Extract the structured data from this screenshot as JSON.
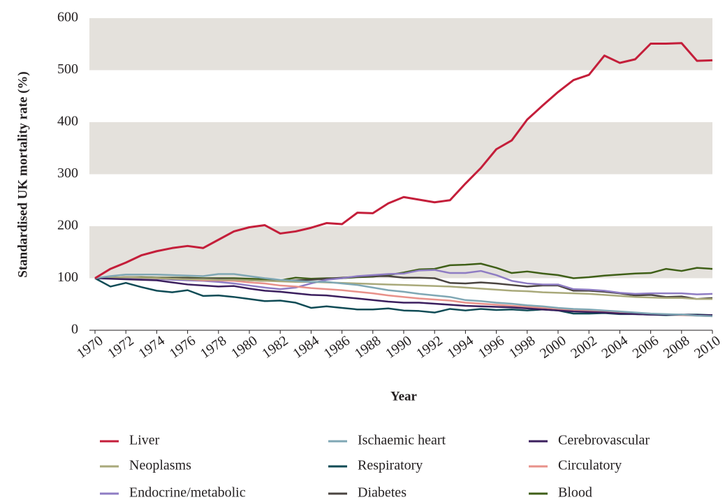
{
  "chart_data": {
    "type": "line",
    "y_label": "Standardised UK mortality rate (%)",
    "x_label": "Year",
    "x": [
      1970,
      1971,
      1972,
      1973,
      1974,
      1975,
      1976,
      1977,
      1978,
      1979,
      1980,
      1981,
      1982,
      1983,
      1984,
      1985,
      1986,
      1987,
      1988,
      1989,
      1990,
      1991,
      1992,
      1993,
      1994,
      1995,
      1996,
      1997,
      1998,
      1999,
      2000,
      2001,
      2002,
      2003,
      2004,
      2005,
      2006,
      2007,
      2008,
      2009,
      2010
    ],
    "xlim": [
      1970,
      2010
    ],
    "xticks": [
      1970,
      1972,
      1974,
      1976,
      1978,
      1980,
      1982,
      1984,
      1986,
      1988,
      1990,
      1992,
      1994,
      1996,
      1998,
      2000,
      2002,
      2004,
      2006,
      2008,
      2010
    ],
    "ylim": [
      0,
      600
    ],
    "yticks": [
      0,
      100,
      200,
      300,
      400,
      500,
      600
    ],
    "grid": true,
    "legend": "bottom",
    "series": [
      {
        "name": "Liver",
        "color": "#c41e3a",
        "values": [
          100,
          118,
          130,
          144,
          152,
          158,
          162,
          158,
          174,
          190,
          198,
          202,
          186,
          190,
          197,
          206,
          204,
          226,
          225,
          244,
          256,
          251,
          246,
          250,
          282,
          312,
          348,
          365,
          405,
          432,
          458,
          481,
          491,
          528,
          514,
          521,
          551,
          551,
          552,
          518,
          519
        ]
      },
      {
        "name": "Ischaemic heart",
        "color": "#7fa7b4",
        "values": [
          100,
          104,
          107,
          107,
          107,
          106,
          105,
          104,
          108,
          108,
          104,
          100,
          97,
          95,
          93,
          93,
          90,
          87,
          82,
          77,
          74,
          70,
          67,
          64,
          58,
          56,
          53,
          51,
          48,
          46,
          43,
          41,
          40,
          38,
          36,
          34,
          32,
          31,
          30,
          28,
          27
        ]
      },
      {
        "name": "Cerebrovascular",
        "color": "#3b1f5e",
        "values": [
          100,
          99,
          98,
          97,
          96,
          92,
          88,
          86,
          84,
          85,
          80,
          76,
          74,
          71,
          68,
          67,
          64,
          61,
          58,
          55,
          53,
          53,
          51,
          49,
          47,
          46,
          45,
          44,
          42,
          40,
          38,
          36,
          35,
          34,
          32,
          31,
          30,
          30,
          30,
          29,
          29
        ]
      },
      {
        "name": "Neoplasms",
        "color": "#a9a97a",
        "values": [
          100,
          101,
          102,
          101,
          100,
          99,
          98,
          98,
          97,
          97,
          96,
          95,
          94,
          93,
          93,
          92,
          91,
          90,
          89,
          88,
          87,
          86,
          85,
          84,
          82,
          80,
          78,
          76,
          75,
          73,
          72,
          71,
          70,
          68,
          66,
          64,
          63,
          62,
          62,
          60,
          60
        ]
      },
      {
        "name": "Respiratory",
        "color": "#0f4b55",
        "values": [
          100,
          84,
          91,
          83,
          76,
          73,
          77,
          66,
          67,
          64,
          60,
          56,
          57,
          53,
          43,
          46,
          43,
          40,
          40,
          42,
          38,
          37,
          34,
          41,
          38,
          41,
          39,
          40,
          38,
          40,
          38,
          32,
          32,
          33,
          31,
          31,
          30,
          29,
          30,
          30,
          29
        ]
      },
      {
        "name": "Circulatory",
        "color": "#e8918a",
        "values": [
          100,
          101,
          102,
          101,
          100,
          99,
          98,
          96,
          96,
          95,
          92,
          90,
          86,
          84,
          81,
          79,
          77,
          74,
          71,
          67,
          64,
          61,
          59,
          57,
          53,
          51,
          49,
          47,
          45,
          43,
          41,
          39,
          37,
          35,
          33,
          32,
          31,
          30,
          29,
          28,
          27
        ]
      },
      {
        "name": "Endocrine/metabolic",
        "color": "#8e7cc3",
        "values": [
          100,
          101,
          101,
          100,
          99,
          97,
          96,
          95,
          93,
          90,
          86,
          82,
          79,
          82,
          90,
          97,
          100,
          104,
          106,
          108,
          109,
          115,
          116,
          110,
          110,
          114,
          106,
          95,
          90,
          88,
          88,
          79,
          78,
          76,
          72,
          70,
          71,
          71,
          71,
          69,
          70
        ]
      },
      {
        "name": "Diabetes",
        "color": "#4a4440",
        "values": [
          100,
          101,
          102,
          101,
          100,
          100,
          100,
          99,
          99,
          98,
          96,
          95,
          95,
          96,
          97,
          99,
          101,
          103,
          104,
          104,
          101,
          101,
          100,
          91,
          90,
          92,
          90,
          87,
          84,
          86,
          86,
          76,
          76,
          74,
          71,
          67,
          68,
          64,
          65,
          60,
          62
        ]
      },
      {
        "name": "Blood",
        "color": "#3f5f17",
        "values": [
          100,
          101,
          102,
          102,
          101,
          101,
          101,
          100,
          100,
          100,
          99,
          98,
          96,
          101,
          99,
          100,
          100,
          102,
          103,
          106,
          111,
          117,
          118,
          125,
          126,
          128,
          120,
          110,
          113,
          109,
          106,
          100,
          102,
          105,
          107,
          109,
          110,
          118,
          114,
          120,
          118
        ]
      }
    ]
  }
}
